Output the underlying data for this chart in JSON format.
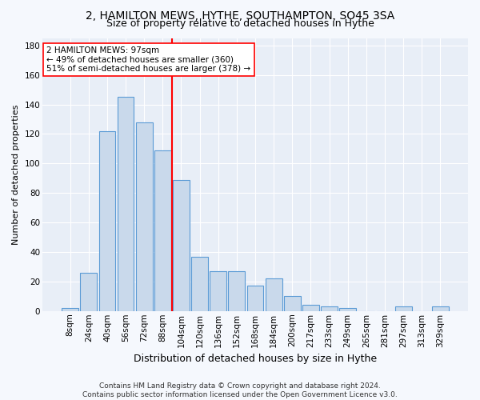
{
  "title": "2, HAMILTON MEWS, HYTHE, SOUTHAMPTON, SO45 3SA",
  "subtitle": "Size of property relative to detached houses in Hythe",
  "xlabel": "Distribution of detached houses by size in Hythe",
  "ylabel": "Number of detached properties",
  "footer": "Contains HM Land Registry data © Crown copyright and database right 2024.\nContains public sector information licensed under the Open Government Licence v3.0.",
  "bar_labels": [
    "8sqm",
    "24sqm",
    "40sqm",
    "56sqm",
    "72sqm",
    "88sqm",
    "104sqm",
    "120sqm",
    "136sqm",
    "152sqm",
    "168sqm",
    "184sqm",
    "200sqm",
    "217sqm",
    "233sqm",
    "249sqm",
    "265sqm",
    "281sqm",
    "297sqm",
    "313sqm",
    "329sqm"
  ],
  "bar_values": [
    2,
    26,
    122,
    145,
    128,
    109,
    89,
    37,
    27,
    27,
    17,
    22,
    10,
    4,
    3,
    2,
    0,
    0,
    3,
    0,
    3
  ],
  "bar_color": "#c9d9eb",
  "bar_edge_color": "#5b9bd5",
  "vline_x": 6.0,
  "vline_color": "red",
  "annotation_text": "2 HAMILTON MEWS: 97sqm\n← 49% of detached houses are smaller (360)\n51% of semi-detached houses are larger (378) →",
  "ylim": [
    0,
    185
  ],
  "yticks": [
    0,
    20,
    40,
    60,
    80,
    100,
    120,
    140,
    160,
    180
  ],
  "plot_bg_color": "#e8eef7",
  "fig_bg_color": "#f5f8fd",
  "grid_color": "#ffffff",
  "title_fontsize": 10,
  "subtitle_fontsize": 9,
  "xlabel_fontsize": 9,
  "ylabel_fontsize": 8,
  "tick_fontsize": 7.5,
  "footer_fontsize": 6.5
}
